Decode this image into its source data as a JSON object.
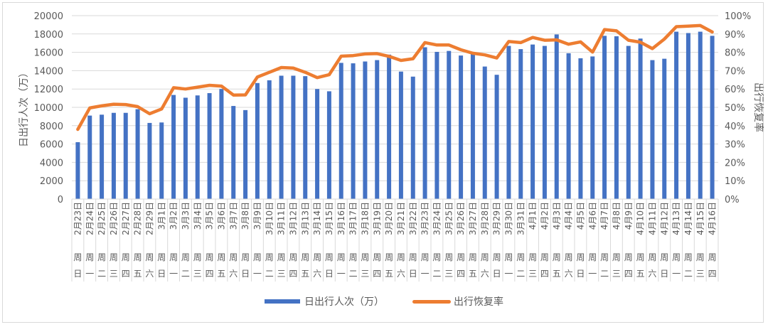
{
  "chart_data": {
    "type": "bar+line",
    "title": "",
    "ylabel": "日出行人次（万）",
    "y2label": "出行恢复率",
    "ylim": [
      0,
      20000
    ],
    "y2lim": [
      0,
      1
    ],
    "yticks": [
      "0",
      "2000",
      "4000",
      "6000",
      "8000",
      "10000",
      "12000",
      "14000",
      "16000",
      "18000",
      "20000"
    ],
    "y2ticks": [
      "0%",
      "10%",
      "20%",
      "30%",
      "40%",
      "50%",
      "60%",
      "70%",
      "80%",
      "90%",
      "100%"
    ],
    "grid": true,
    "legend_position": "bottom",
    "categories": [
      {
        "date": "2月23日",
        "weekday": [
          "周",
          "日"
        ]
      },
      {
        "date": "2月24日",
        "weekday": [
          "周",
          "一"
        ]
      },
      {
        "date": "2月25日",
        "weekday": [
          "周",
          "二"
        ]
      },
      {
        "date": "2月26日",
        "weekday": [
          "周",
          "三"
        ]
      },
      {
        "date": "2月27日",
        "weekday": [
          "周",
          "四"
        ]
      },
      {
        "date": "2月28日",
        "weekday": [
          "周",
          "五"
        ]
      },
      {
        "date": "2月29日",
        "weekday": [
          "周",
          "六"
        ]
      },
      {
        "date": "3月1日",
        "weekday": [
          "周",
          "日"
        ]
      },
      {
        "date": "3月2日",
        "weekday": [
          "周",
          "一"
        ]
      },
      {
        "date": "3月3日",
        "weekday": [
          "周",
          "二"
        ]
      },
      {
        "date": "3月4日",
        "weekday": [
          "周",
          "三"
        ]
      },
      {
        "date": "3月5日",
        "weekday": [
          "周",
          "四"
        ]
      },
      {
        "date": "3月6日",
        "weekday": [
          "周",
          "五"
        ]
      },
      {
        "date": "3月7日",
        "weekday": [
          "周",
          "六"
        ]
      },
      {
        "date": "3月8日",
        "weekday": [
          "周",
          "日"
        ]
      },
      {
        "date": "3月9日",
        "weekday": [
          "周",
          "一"
        ]
      },
      {
        "date": "3月10日",
        "weekday": [
          "周",
          "二"
        ]
      },
      {
        "date": "3月11日",
        "weekday": [
          "周",
          "三"
        ]
      },
      {
        "date": "3月12日",
        "weekday": [
          "周",
          "四"
        ]
      },
      {
        "date": "3月13日",
        "weekday": [
          "周",
          "五"
        ]
      },
      {
        "date": "3月14日",
        "weekday": [
          "周",
          "六"
        ]
      },
      {
        "date": "3月15日",
        "weekday": [
          "周",
          "日"
        ]
      },
      {
        "date": "3月16日",
        "weekday": [
          "周",
          "一"
        ]
      },
      {
        "date": "3月17日",
        "weekday": [
          "周",
          "二"
        ]
      },
      {
        "date": "3月18日",
        "weekday": [
          "周",
          "三"
        ]
      },
      {
        "date": "3月19日",
        "weekday": [
          "周",
          "四"
        ]
      },
      {
        "date": "3月20日",
        "weekday": [
          "周",
          "五"
        ]
      },
      {
        "date": "3月21日",
        "weekday": [
          "周",
          "六"
        ]
      },
      {
        "date": "3月22日",
        "weekday": [
          "周",
          "日"
        ]
      },
      {
        "date": "3月23日",
        "weekday": [
          "周",
          "一"
        ]
      },
      {
        "date": "3月24日",
        "weekday": [
          "周",
          "二"
        ]
      },
      {
        "date": "3月25日",
        "weekday": [
          "周",
          "三"
        ]
      },
      {
        "date": "3月26日",
        "weekday": [
          "周",
          "四"
        ]
      },
      {
        "date": "3月27日",
        "weekday": [
          "周",
          "五"
        ]
      },
      {
        "date": "3月28日",
        "weekday": [
          "周",
          "六"
        ]
      },
      {
        "date": "3月29日",
        "weekday": [
          "周",
          "日"
        ]
      },
      {
        "date": "3月30日",
        "weekday": [
          "周",
          "一"
        ]
      },
      {
        "date": "3月31日",
        "weekday": [
          "周",
          "二"
        ]
      },
      {
        "date": "4月1日",
        "weekday": [
          "周",
          "三"
        ]
      },
      {
        "date": "4月2日",
        "weekday": [
          "周",
          "四"
        ]
      },
      {
        "date": "4月3日",
        "weekday": [
          "周",
          "五"
        ]
      },
      {
        "date": "4月4日",
        "weekday": [
          "周",
          "六"
        ]
      },
      {
        "date": "4月5日",
        "weekday": [
          "周",
          "日"
        ]
      },
      {
        "date": "4月6日",
        "weekday": [
          "周",
          "一"
        ]
      },
      {
        "date": "4月7日",
        "weekday": [
          "周",
          "二"
        ]
      },
      {
        "date": "4月8日",
        "weekday": [
          "周",
          "三"
        ]
      },
      {
        "date": "4月9日",
        "weekday": [
          "周",
          "四"
        ]
      },
      {
        "date": "4月10日",
        "weekday": [
          "周",
          "五"
        ]
      },
      {
        "date": "4月11日",
        "weekday": [
          "周",
          "六"
        ]
      },
      {
        "date": "4月12日",
        "weekday": [
          "周",
          "日"
        ]
      },
      {
        "date": "4月13日",
        "weekday": [
          "周",
          "一"
        ]
      },
      {
        "date": "4月14日",
        "weekday": [
          "周",
          "二"
        ]
      },
      {
        "date": "4月15日",
        "weekday": [
          "周",
          "三"
        ]
      },
      {
        "date": "4月16日",
        "weekday": [
          "周",
          "四"
        ]
      }
    ],
    "series": [
      {
        "name": "日出行人次（万）",
        "type": "bar",
        "axis": "left",
        "color": "#4472c4",
        "values": [
          6200,
          9100,
          9200,
          9400,
          9400,
          9800,
          8300,
          8350,
          11350,
          11050,
          11300,
          11550,
          12000,
          10150,
          9700,
          12650,
          12950,
          13450,
          13450,
          13400,
          12000,
          11750,
          14850,
          14800,
          15000,
          15150,
          15750,
          13900,
          13350,
          16550,
          16050,
          16150,
          15650,
          16000,
          14450,
          13550,
          16700,
          16350,
          16850,
          16700,
          17950,
          15900,
          15350,
          15550,
          17800,
          17750,
          16700,
          17500,
          15150,
          15300,
          18250,
          18100,
          18250,
          17800
        ]
      },
      {
        "name": "出行恢复率",
        "type": "line",
        "axis": "right",
        "color": "#ed7d31",
        "values": [
          0.38,
          0.497,
          0.508,
          0.517,
          0.515,
          0.504,
          0.465,
          0.491,
          0.607,
          0.6,
          0.61,
          0.62,
          0.616,
          0.567,
          0.568,
          0.665,
          0.691,
          0.717,
          0.714,
          0.691,
          0.662,
          0.678,
          0.779,
          0.782,
          0.791,
          0.793,
          0.778,
          0.756,
          0.765,
          0.853,
          0.84,
          0.84,
          0.814,
          0.795,
          0.786,
          0.769,
          0.859,
          0.853,
          0.881,
          0.866,
          0.868,
          0.844,
          0.857,
          0.801,
          0.924,
          0.917,
          0.866,
          0.855,
          0.82,
          0.872,
          0.94,
          0.943,
          0.946,
          0.911
        ]
      }
    ]
  },
  "legend": {
    "bar_label": "日出行人次（万）",
    "line_label": "出行恢复率"
  }
}
